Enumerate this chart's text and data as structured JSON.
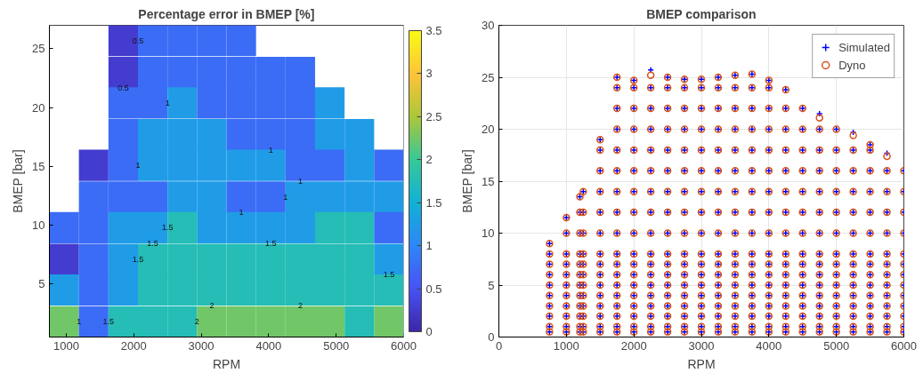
{
  "chart_data": [
    {
      "type": "heatmap",
      "title": "Percentage error in BMEP [%]",
      "xlabel": "RPM",
      "ylabel": "BMEP [bar]",
      "x": [
        969,
        1406,
        1844,
        2281,
        2719,
        3156,
        3594,
        4031,
        4469,
        4906,
        5344,
        5781
      ],
      "y": [
        25.7,
        23.0,
        20.4,
        17.7,
        15.1,
        12.4,
        9.8,
        7.1,
        4.5,
        1.8
      ],
      "cells": [
        [
          null,
          null,
          0.25,
          0.75,
          0.75,
          0.75,
          0.75,
          null,
          null,
          null,
          null,
          null
        ],
        [
          null,
          null,
          0.25,
          0.75,
          0.75,
          0.75,
          0.75,
          0.75,
          0.75,
          null,
          null,
          null
        ],
        [
          null,
          null,
          0.75,
          0.75,
          1.25,
          0.75,
          0.75,
          0.75,
          0.75,
          1.25,
          null,
          null
        ],
        [
          null,
          null,
          0.75,
          1.25,
          1.25,
          1.25,
          0.75,
          0.75,
          0.75,
          1.25,
          1.25,
          null
        ],
        [
          null,
          0.25,
          0.75,
          1.25,
          1.25,
          1.25,
          1.25,
          1.25,
          0.75,
          0.75,
          1.25,
          0.75
        ],
        [
          null,
          0.75,
          0.75,
          0.75,
          1.25,
          1.25,
          0.75,
          0.75,
          1.25,
          1.25,
          1.25,
          1.25
        ],
        [
          0.75,
          0.75,
          1.25,
          1.25,
          1.75,
          1.25,
          1.25,
          1.25,
          1.25,
          1.75,
          1.75,
          0.75
        ],
        [
          0.25,
          0.75,
          1.25,
          1.75,
          1.75,
          1.75,
          1.75,
          1.75,
          1.75,
          1.75,
          1.75,
          1.25
        ],
        [
          1.25,
          0.75,
          1.25,
          1.75,
          1.75,
          1.75,
          1.75,
          1.75,
          1.75,
          1.75,
          1.75,
          1.75
        ],
        [
          2.25,
          0.75,
          1.75,
          1.75,
          1.75,
          2.25,
          2.25,
          2.25,
          2.25,
          2.25,
          1.75,
          2.25
        ]
      ],
      "xlim": [
        750,
        6000
      ],
      "xticks": [
        1000,
        2000,
        3000,
        4000,
        5000,
        6000
      ],
      "ylim": [
        0.5,
        27
      ],
      "yticks": [
        5,
        10,
        15,
        20,
        25
      ],
      "clim": [
        0,
        3.5
      ],
      "cticks": [
        0,
        0.5,
        1,
        1.5,
        2,
        2.5,
        3,
        3.5
      ],
      "annotations": [
        "0.5",
        "0.5",
        "1",
        "1",
        "1",
        "1",
        "1",
        "1",
        "1",
        "1.5",
        "1.5",
        "1.5",
        "1.5",
        "1.5",
        "1.5",
        "2",
        "2",
        "2"
      ]
    },
    {
      "type": "scatter",
      "title": "BMEP comparison",
      "xlabel": "RPM",
      "ylabel": "BMEP [bar]",
      "xlim": [
        0,
        6000
      ],
      "xticks": [
        0,
        1000,
        2000,
        3000,
        4000,
        5000,
        6000
      ],
      "ylim": [
        0,
        30
      ],
      "yticks": [
        0,
        5,
        10,
        15,
        20,
        25,
        30
      ],
      "grid": true,
      "legend": "top right",
      "x": [
        750,
        750,
        750,
        750,
        750,
        750,
        750,
        750,
        750,
        750,
        1000,
        1000,
        1000,
        1000,
        1000,
        1000,
        1000,
        1000,
        1000,
        1000,
        1000,
        1200,
        1200,
        1200,
        1200,
        1200,
        1200,
        1200,
        1200,
        1200,
        1200,
        1200,
        1200,
        1250,
        1250,
        1250,
        1250,
        1250,
        1250,
        1250,
        1250,
        1250,
        1250,
        1250,
        1250,
        1500,
        1500,
        1500,
        1500,
        1500,
        1500,
        1500,
        1500,
        1500,
        1500,
        1500,
        1500,
        1500,
        1500,
        1500,
        1750,
        1750,
        1750,
        1750,
        1750,
        1750,
        1750,
        1750,
        1750,
        1750,
        1750,
        1750,
        1750,
        1750,
        1750,
        1750,
        1750,
        1750,
        2000,
        2000,
        2000,
        2000,
        2000,
        2000,
        2000,
        2000,
        2000,
        2000,
        2000,
        2000,
        2000,
        2000,
        2000,
        2000,
        2000,
        2000,
        2250,
        2250,
        2250,
        2250,
        2250,
        2250,
        2250,
        2250,
        2250,
        2250,
        2250,
        2250,
        2250,
        2250,
        2250,
        2250,
        2250,
        2250,
        2500,
        2500,
        2500,
        2500,
        2500,
        2500,
        2500,
        2500,
        2500,
        2500,
        2500,
        2500,
        2500,
        2500,
        2500,
        2500,
        2500,
        2500,
        2750,
        2750,
        2750,
        2750,
        2750,
        2750,
        2750,
        2750,
        2750,
        2750,
        2750,
        2750,
        2750,
        2750,
        2750,
        2750,
        2750,
        2750,
        3000,
        3000,
        3000,
        3000,
        3000,
        3000,
        3000,
        3000,
        3000,
        3000,
        3000,
        3000,
        3000,
        3000,
        3000,
        3000,
        3000,
        3000,
        3250,
        3250,
        3250,
        3250,
        3250,
        3250,
        3250,
        3250,
        3250,
        3250,
        3250,
        3250,
        3250,
        3250,
        3250,
        3250,
        3250,
        3250,
        3500,
        3500,
        3500,
        3500,
        3500,
        3500,
        3500,
        3500,
        3500,
        3500,
        3500,
        3500,
        3500,
        3500,
        3500,
        3500,
        3500,
        3500,
        3750,
        3750,
        3750,
        3750,
        3750,
        3750,
        3750,
        3750,
        3750,
        3750,
        3750,
        3750,
        3750,
        3750,
        3750,
        3750,
        3750,
        3750,
        4000,
        4000,
        4000,
        4000,
        4000,
        4000,
        4000,
        4000,
        4000,
        4000,
        4000,
        4000,
        4000,
        4000,
        4000,
        4000,
        4000,
        4000,
        4250,
        4250,
        4250,
        4250,
        4250,
        4250,
        4250,
        4250,
        4250,
        4250,
        4250,
        4250,
        4250,
        4250,
        4250,
        4250,
        4250,
        4500,
        4500,
        4500,
        4500,
        4500,
        4500,
        4500,
        4500,
        4500,
        4500,
        4500,
        4500,
        4500,
        4500,
        4500,
        4500,
        4750,
        4750,
        4750,
        4750,
        4750,
        4750,
        4750,
        4750,
        4750,
        4750,
        4750,
        4750,
        4750,
        4750,
        4750,
        4750,
        5000,
        5000,
        5000,
        5000,
        5000,
        5000,
        5000,
        5000,
        5000,
        5000,
        5000,
        5000,
        5000,
        5000,
        5000,
        5250,
        5250,
        5250,
        5250,
        5250,
        5250,
        5250,
        5250,
        5250,
        5250,
        5250,
        5250,
        5250,
        5250,
        5250,
        5500,
        5500,
        5500,
        5500,
        5500,
        5500,
        5500,
        5500,
        5500,
        5500,
        5500,
        5500,
        5500,
        5500,
        5500,
        5750,
        5750,
        5750,
        5750,
        5750,
        5750,
        5750,
        5750,
        5750,
        5750,
        5750,
        5750,
        5750,
        5750,
        6000,
        6000,
        6000,
        6000,
        6000,
        6000,
        6000,
        6000,
        6000,
        6000,
        6000,
        6000,
        6000
      ],
      "series": [
        {
          "name": "Simulated",
          "color": "#0000ff",
          "marker": "cross",
          "values": [
            0.5,
            1,
            2,
            3,
            4,
            5,
            6,
            7,
            8,
            9,
            0.5,
            1,
            2,
            3,
            4,
            5,
            6,
            7,
            8,
            10,
            11.5,
            0.5,
            1,
            2,
            3,
            4,
            5,
            6,
            7,
            8,
            10,
            12,
            13.5,
            0.5,
            1,
            2,
            3,
            4,
            5,
            6,
            7,
            8,
            10,
            12,
            14,
            0.5,
            1,
            2,
            3,
            4,
            5,
            6,
            7,
            8,
            10,
            12,
            14,
            16,
            18,
            19,
            0.5,
            1,
            2,
            3,
            4,
            5,
            6,
            7,
            8,
            10,
            12,
            14,
            16,
            18,
            20,
            22,
            24,
            25,
            0.5,
            1,
            2,
            3,
            4,
            5,
            6,
            7,
            8,
            10,
            12,
            14,
            16,
            18,
            20,
            22,
            24,
            24.7,
            0.5,
            1,
            2,
            3,
            4,
            5,
            6,
            7,
            8,
            10,
            12,
            14,
            16,
            18,
            20,
            22,
            24,
            25.7,
            0.5,
            1,
            2,
            3,
            4,
            5,
            6,
            7,
            8,
            10,
            12,
            14,
            16,
            18,
            20,
            22,
            24,
            25,
            0.5,
            1,
            2,
            3,
            4,
            5,
            6,
            7,
            8,
            10,
            12,
            14,
            16,
            18,
            20,
            22,
            24,
            24.8,
            0.5,
            1,
            2,
            3,
            4,
            5,
            6,
            7,
            8,
            10,
            12,
            14,
            16,
            18,
            20,
            22,
            24,
            24.8,
            0.5,
            1,
            2,
            3,
            4,
            5,
            6,
            7,
            8,
            10,
            12,
            14,
            16,
            18,
            20,
            22,
            24,
            25,
            0.5,
            1,
            2,
            3,
            4,
            5,
            6,
            7,
            8,
            10,
            12,
            14,
            16,
            18,
            20,
            22,
            24,
            25.2,
            0.5,
            1,
            2,
            3,
            4,
            5,
            6,
            7,
            8,
            10,
            12,
            14,
            16,
            18,
            20,
            22,
            24,
            25.3,
            0.5,
            1,
            2,
            3,
            4,
            5,
            6,
            7,
            8,
            10,
            12,
            14,
            16,
            18,
            20,
            22,
            24,
            24.7,
            0.5,
            1,
            2,
            3,
            4,
            5,
            6,
            7,
            8,
            10,
            12,
            14,
            16,
            18,
            20,
            22,
            23.8,
            0.5,
            1,
            2,
            3,
            4,
            5,
            6,
            7,
            8,
            10,
            12,
            14,
            16,
            18,
            20,
            22,
            0.5,
            1,
            2,
            3,
            4,
            5,
            6,
            7,
            8,
            10,
            12,
            14,
            16,
            18,
            20,
            21.5,
            0.5,
            1,
            2,
            3,
            4,
            5,
            6,
            7,
            8,
            10,
            12,
            14,
            16,
            18,
            20,
            0.5,
            1,
            2,
            3,
            4,
            5,
            6,
            7,
            8,
            10,
            12,
            14,
            16,
            18,
            19.7,
            0.5,
            1,
            2,
            3,
            4,
            5,
            6,
            7,
            8,
            10,
            12,
            14,
            16,
            18,
            18.5,
            0.5,
            1,
            2,
            3,
            4,
            5,
            6,
            7,
            8,
            10,
            12,
            14,
            16,
            17.7,
            0.5,
            1,
            2,
            3,
            4,
            5,
            6,
            7,
            8,
            10,
            12,
            14,
            16
          ]
        },
        {
          "name": "Dyno",
          "color": "#d95319",
          "marker": "circle",
          "values": [
            0.5,
            1,
            2,
            3,
            4,
            5,
            6,
            7,
            8,
            9,
            0.5,
            1,
            2,
            3,
            4,
            5,
            6,
            7,
            8,
            10,
            11.5,
            0.5,
            1,
            2,
            3,
            4,
            5,
            6,
            7,
            8,
            10,
            12,
            13.5,
            0.5,
            1,
            2,
            3,
            4,
            5,
            6,
            7,
            8,
            10,
            12,
            14,
            0.5,
            1,
            2,
            3,
            4,
            5,
            6,
            7,
            8,
            10,
            12,
            14,
            16,
            18,
            19,
            0.5,
            1,
            2,
            3,
            4,
            5,
            6,
            7,
            8,
            10,
            12,
            14,
            16,
            18,
            20,
            22,
            24,
            25,
            0.5,
            1,
            2,
            3,
            4,
            5,
            6,
            7,
            8,
            10,
            12,
            14,
            16,
            18,
            20,
            22,
            24,
            24.7,
            0.5,
            1,
            2,
            3,
            4,
            5,
            6,
            7,
            8,
            10,
            12,
            14,
            16,
            18,
            20,
            22,
            24,
            25.2,
            0.5,
            1,
            2,
            3,
            4,
            5,
            6,
            7,
            8,
            10,
            12,
            14,
            16,
            18,
            20,
            22,
            24,
            25,
            0.5,
            1,
            2,
            3,
            4,
            5,
            6,
            7,
            8,
            10,
            12,
            14,
            16,
            18,
            20,
            22,
            24,
            24.8,
            0.5,
            1,
            2,
            3,
            4,
            5,
            6,
            7,
            8,
            10,
            12,
            14,
            16,
            18,
            20,
            22,
            24,
            24.8,
            0.5,
            1,
            2,
            3,
            4,
            5,
            6,
            7,
            8,
            10,
            12,
            14,
            16,
            18,
            20,
            22,
            24,
            25,
            0.5,
            1,
            2,
            3,
            4,
            5,
            6,
            7,
            8,
            10,
            12,
            14,
            16,
            18,
            20,
            22,
            24,
            25.2,
            0.5,
            1,
            2,
            3,
            4,
            5,
            6,
            7,
            8,
            10,
            12,
            14,
            16,
            18,
            20,
            22,
            24,
            25.3,
            0.5,
            1,
            2,
            3,
            4,
            5,
            6,
            7,
            8,
            10,
            12,
            14,
            16,
            18,
            20,
            22,
            24,
            24.7,
            0.5,
            1,
            2,
            3,
            4,
            5,
            6,
            7,
            8,
            10,
            12,
            14,
            16,
            18,
            20,
            22,
            23.8,
            0.5,
            1,
            2,
            3,
            4,
            5,
            6,
            7,
            8,
            10,
            12,
            14,
            16,
            18,
            20,
            22,
            0.5,
            1,
            2,
            3,
            4,
            5,
            6,
            7,
            8,
            10,
            12,
            14,
            16,
            18,
            20,
            21.1,
            0.5,
            1,
            2,
            3,
            4,
            5,
            6,
            7,
            8,
            10,
            12,
            14,
            16,
            18,
            20,
            0.5,
            1,
            2,
            3,
            4,
            5,
            6,
            7,
            8,
            10,
            12,
            14,
            16,
            18,
            19.4,
            0.5,
            1,
            2,
            3,
            4,
            5,
            6,
            7,
            8,
            10,
            12,
            14,
            16,
            18,
            18.5,
            0.5,
            1,
            2,
            3,
            4,
            5,
            6,
            7,
            8,
            10,
            12,
            14,
            16,
            17.4,
            0.5,
            1,
            2,
            3,
            4,
            5,
            6,
            7,
            8,
            10,
            12,
            14,
            16
          ]
        }
      ]
    }
  ]
}
